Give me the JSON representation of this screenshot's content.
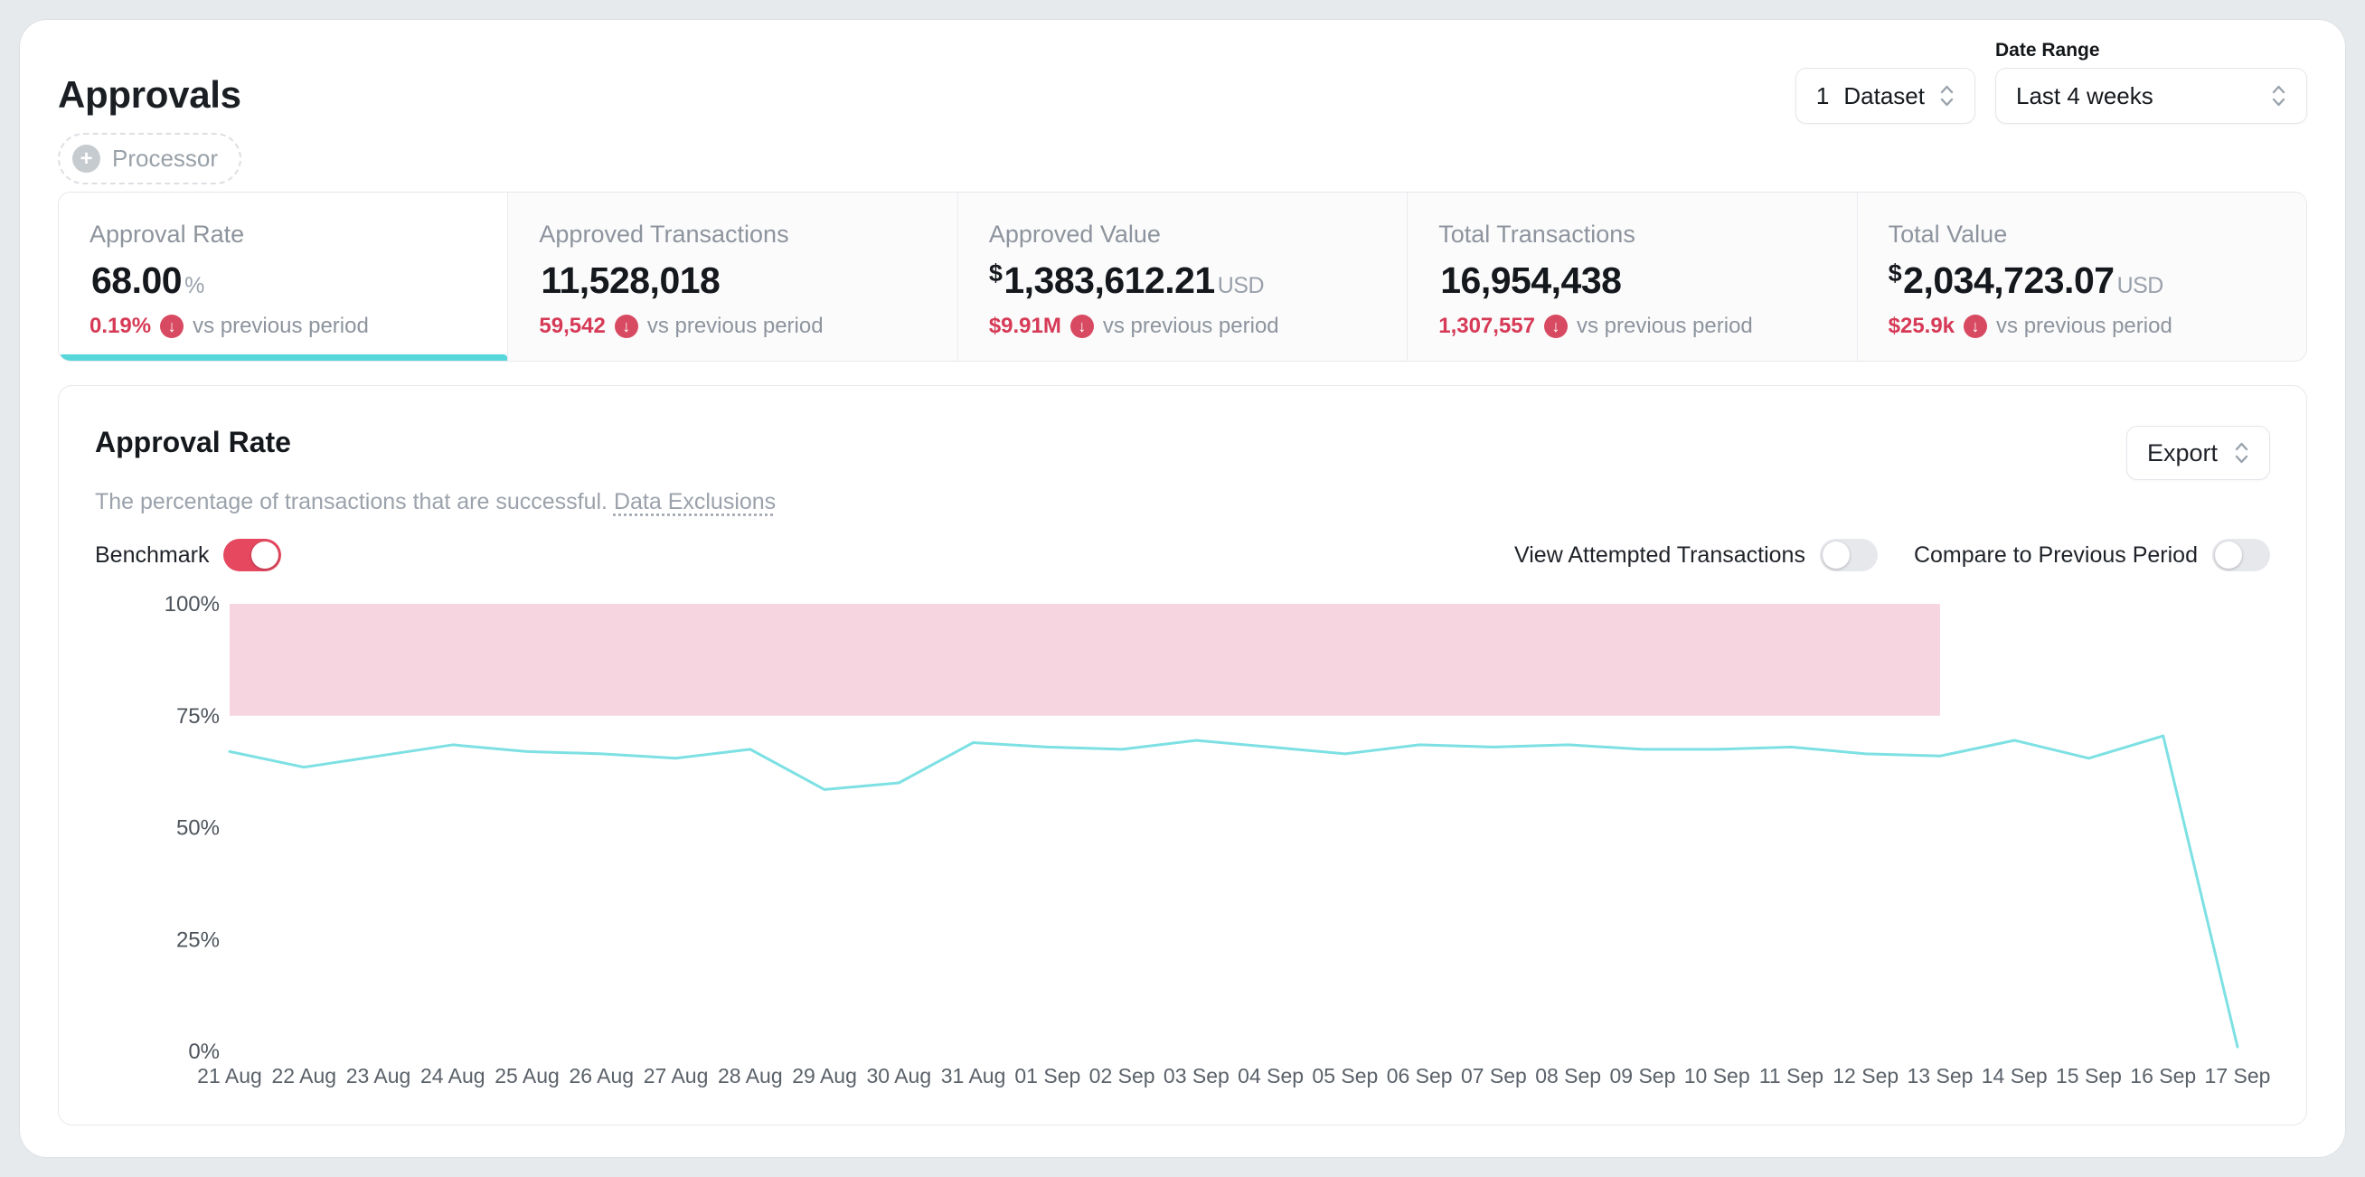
{
  "page": {
    "title": "Approvals"
  },
  "header": {
    "dataset": {
      "count": "1",
      "label": "Dataset"
    },
    "date_range": {
      "label": "Date Range",
      "value": "Last 4 weeks"
    }
  },
  "filters": {
    "processor_label": "Processor"
  },
  "metric_tabs": [
    {
      "label": "Approval Rate",
      "prefix": "",
      "value": "68.00",
      "suffix": "%",
      "delta": "0.19%",
      "delta_note": "vs previous period",
      "active": true
    },
    {
      "label": "Approved Transactions",
      "prefix": "",
      "value": "11,528,018",
      "suffix": "",
      "delta": "59,542",
      "delta_note": "vs previous period",
      "active": false
    },
    {
      "label": "Approved Value",
      "prefix": "$",
      "value": "1,383,612.21",
      "suffix": "USD",
      "delta": "$9.91M",
      "delta_note": "vs previous period",
      "active": false
    },
    {
      "label": "Total Transactions",
      "prefix": "",
      "value": "16,954,438",
      "suffix": "",
      "delta": "1,307,557",
      "delta_note": "vs previous period",
      "active": false
    },
    {
      "label": "Total Value",
      "prefix": "$",
      "value": "2,034,723.07",
      "suffix": "USD",
      "delta": "$25.9k",
      "delta_note": "vs previous period",
      "active": false
    }
  ],
  "panel": {
    "title": "Approval Rate",
    "description": "The percentage of transactions that are successful.",
    "data_exclusions": "Data Exclusions",
    "export_label": "Export",
    "toggles": {
      "benchmark": {
        "label": "Benchmark",
        "on": true
      },
      "view_attempted": {
        "label": "View Attempted Transactions",
        "on": false
      },
      "compare_previous": {
        "label": "Compare to Previous Period",
        "on": false
      }
    }
  },
  "chart_data": {
    "type": "line",
    "title": "Approval Rate",
    "x": [
      "21 Aug",
      "22 Aug",
      "23 Aug",
      "24 Aug",
      "25 Aug",
      "26 Aug",
      "27 Aug",
      "28 Aug",
      "29 Aug",
      "30 Aug",
      "31 Aug",
      "01 Sep",
      "02 Sep",
      "03 Sep",
      "04 Sep",
      "05 Sep",
      "06 Sep",
      "07 Sep",
      "08 Sep",
      "09 Sep",
      "10 Sep",
      "11 Sep",
      "12 Sep",
      "13 Sep",
      "14 Sep",
      "15 Sep",
      "16 Sep",
      "17 Sep"
    ],
    "series": [
      {
        "name": "Approval Rate (%)",
        "values": [
          67,
          63.5,
          66,
          68.5,
          67,
          66.5,
          65.5,
          67.5,
          58.5,
          60,
          69,
          68,
          67.5,
          69.5,
          68,
          66.5,
          68.5,
          68,
          68.5,
          67.5,
          67.5,
          68,
          66.5,
          66,
          69.5,
          65.5,
          70.5,
          1
        ]
      }
    ],
    "ylim": [
      0,
      100
    ],
    "yticks": [
      {
        "value": 0,
        "label": "0%"
      },
      {
        "value": 25,
        "label": "25%"
      },
      {
        "value": 50,
        "label": "50%"
      },
      {
        "value": 75,
        "label": "75%"
      },
      {
        "value": 100,
        "label": "100%"
      }
    ],
    "benchmark_band": {
      "x_start": "21 Aug",
      "x_end": "13 Sep",
      "y_min": 75,
      "y_max": 100
    },
    "grid": false,
    "legend": "none",
    "line_color": "#7de0e3",
    "band_color": "#f6d4e0"
  },
  "colors": {
    "accent_teal": "#57d7da",
    "negative_red": "#d63a56",
    "toggle_on_red": "#e5485f"
  }
}
